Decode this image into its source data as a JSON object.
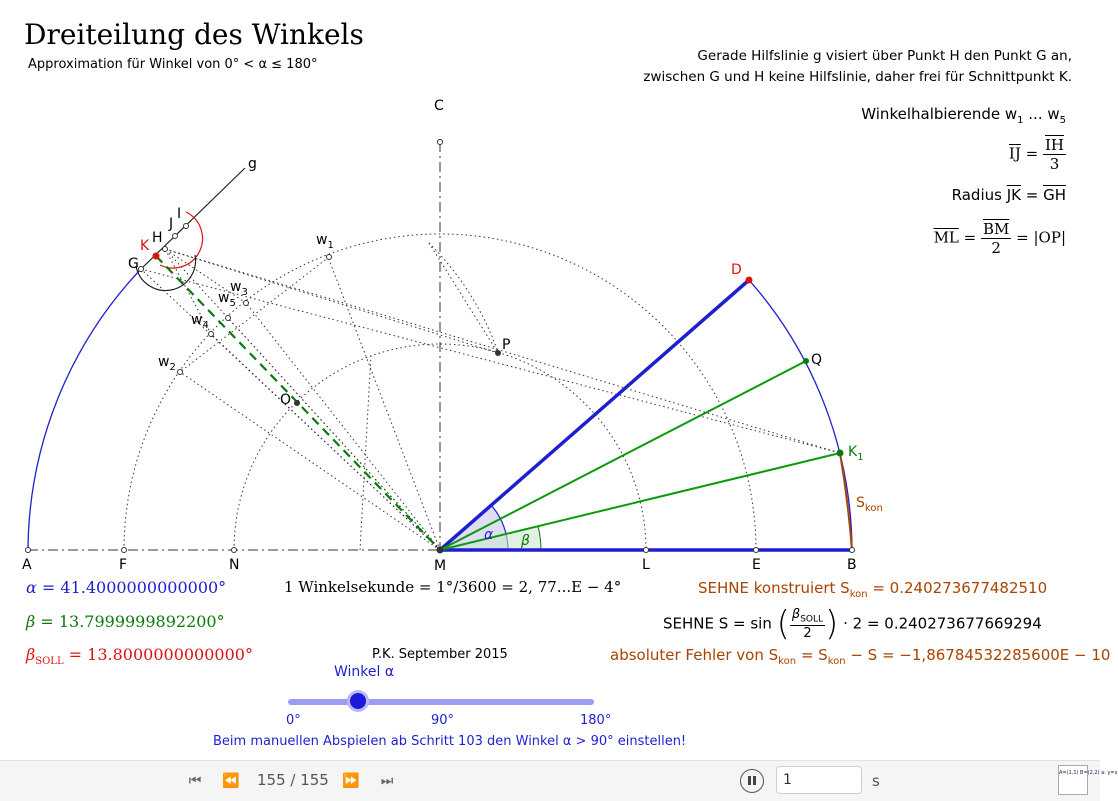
{
  "title": "Dreiteilung des Winkels",
  "subtitle": "Approximation für Winkel von 0° < α ≤ 180°",
  "note": {
    "line1": "Gerade Hilfslinie g visiert über Punkt H den Punkt G an,",
    "line2": "zwischen G und H keine Hilfslinie, daher frei für Schnittpunkt K."
  },
  "right_panel": {
    "bisectors_label": "Winkelhalbierende w",
    "bisectors_from": "1",
    "bisectors_dots": " ... w",
    "bisectors_to": "5",
    "ij_lhs": "IJ",
    "ij_num": "IH",
    "ij_den": "3",
    "radius_label": "Radius ",
    "radius_lhs": "JK",
    "radius_rhs": "GH",
    "ml_lhs": "ML",
    "ml_num": "BM",
    "ml_den": "2",
    "ml_rhs": "|OP|"
  },
  "points": {
    "A": "A",
    "F": "F",
    "N": "N",
    "M": "M",
    "L": "L",
    "E": "E",
    "B": "B",
    "C": "C",
    "D": "D",
    "Q": "Q",
    "K1": "K",
    "K1_sub": "1",
    "P": "P",
    "O": "O",
    "G": "G",
    "H": "H",
    "K": "K",
    "J": "J",
    "I": "I",
    "g": "g",
    "w1": "w",
    "w1_sub": "1",
    "w2": "w",
    "w2_sub": "2",
    "w3": "w",
    "w3_sub": "3",
    "w4": "w",
    "w4_sub": "4",
    "w5": "w",
    "w5_sub": "5",
    "alpha": "α",
    "beta": "β",
    "Skon": "S",
    "Skon_sub": "kon"
  },
  "values": {
    "alpha_label": "α",
    "alpha_value": " = 41.4000000000000°",
    "beta_label": "β",
    "beta_value": " = 13.7999999892200°",
    "beta_soll_label": "β",
    "beta_soll_sub": "SOLL",
    "beta_soll_value": " = 13.8000000000000°",
    "winkelsekunde": "1 Winkelsekunde = 1°/3600 = 2, 77...E − 4°",
    "sehne_kon": "SEHNE konstruiert S",
    "sehne_kon_sub": "kon",
    "sehne_kon_value": " = 0.240273677482510",
    "sehne_s_label": "SEHNE S = sin",
    "sehne_s_num": "β",
    "sehne_s_num_sub": "SOLL",
    "sehne_s_den": "2",
    "sehne_s_value": "· 2 = 0.240273677669294",
    "fehler": "absoluter Fehler von S",
    "fehler_sub1": "kon",
    "fehler_mid": " = S",
    "fehler_sub2": "kon",
    "fehler_value": " − S = −1,86784532285600E − 10",
    "author": "P.K. September 2015"
  },
  "slider": {
    "label": "Winkel α",
    "min_label": "0°",
    "mid_label": "90°",
    "max_label": "180°",
    "value_deg": 41.4,
    "hint": "Beim manuellen Abspielen ab Schritt 103 den Winkel α > 90° einstellen!"
  },
  "toolbar": {
    "first_icon": "skip-to-start-icon",
    "prev_icon": "step-back-icon",
    "step": "155 / 155",
    "next_icon": "step-forward-icon",
    "last_icon": "skip-to-end-icon",
    "pause_icon": "pause-icon",
    "speed_value": "1",
    "speed_unit": "s",
    "algebra_icon": "algebra-view-icon",
    "algebra_text": "A=(1,1) B=(2,2) a: y=x"
  },
  "colors": {
    "blue": "#1f1fcf",
    "green": "#0a7a0a",
    "red": "#e01010",
    "brown": "#a94400"
  }
}
